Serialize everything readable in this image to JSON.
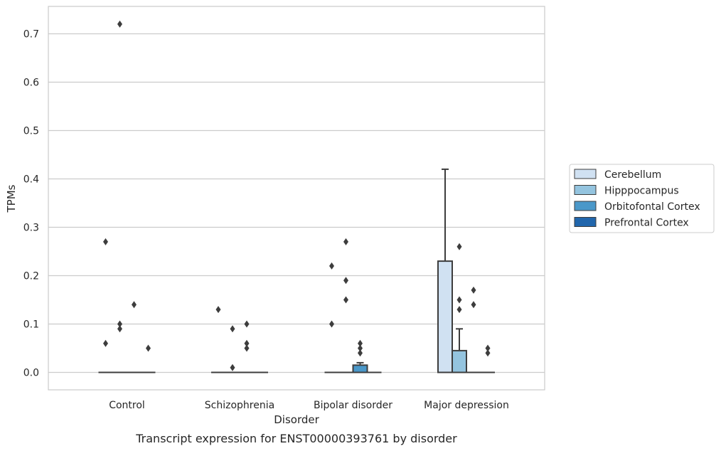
{
  "chart_data": {
    "type": "boxplot",
    "title": "",
    "caption": "Transcript expression for ENST00000393761 by disorder",
    "xlabel": "Disorder",
    "ylabel": "TPMs",
    "ylim": [
      -0.035,
      0.755
    ],
    "yticks": [
      "0.0",
      "0.1",
      "0.2",
      "0.3",
      "0.4",
      "0.5",
      "0.6",
      "0.7"
    ],
    "categories": [
      "Control",
      "Schizophrenia",
      "Bipolar disorder",
      "Major depression"
    ],
    "grid": "horizontal",
    "legend_position": "right",
    "series": [
      {
        "name": "Cerebellum",
        "color": "#d0e1f2",
        "boxes": [
          {
            "q1": 0,
            "median": 0,
            "q3": 0,
            "whisker_low": 0,
            "whisker_high": 0,
            "outliers": [
              0.27,
              0.06
            ]
          },
          {
            "q1": 0,
            "median": 0,
            "q3": 0,
            "whisker_low": 0,
            "whisker_high": 0,
            "outliers": [
              0.13
            ]
          },
          {
            "q1": 0,
            "median": 0,
            "q3": 0,
            "whisker_low": 0,
            "whisker_high": 0,
            "outliers": [
              0.22,
              0.1
            ]
          },
          {
            "q1": 0,
            "median": 0,
            "q3": 0.23,
            "whisker_low": 0,
            "whisker_high": 0.42,
            "outliers": []
          }
        ]
      },
      {
        "name": "Hipppocampus",
        "color": "#94c4df",
        "boxes": [
          {
            "q1": 0,
            "median": 0,
            "q3": 0,
            "whisker_low": 0,
            "whisker_high": 0,
            "outliers": [
              0.72,
              0.1,
              0.09
            ]
          },
          {
            "q1": 0,
            "median": 0,
            "q3": 0,
            "whisker_low": 0,
            "whisker_high": 0,
            "outliers": [
              0.09,
              0.01
            ]
          },
          {
            "q1": 0,
            "median": 0,
            "q3": 0,
            "whisker_low": 0,
            "whisker_high": 0,
            "outliers": [
              0.27,
              0.19,
              0.15
            ]
          },
          {
            "q1": 0,
            "median": 0,
            "q3": 0.045,
            "whisker_low": 0,
            "whisker_high": 0.09,
            "outliers": [
              0.26,
              0.15,
              0.13
            ]
          }
        ]
      },
      {
        "name": "Orbitofontal Cortex",
        "color": "#4a98c9",
        "boxes": [
          {
            "q1": 0,
            "median": 0,
            "q3": 0,
            "whisker_low": 0,
            "whisker_high": 0,
            "outliers": [
              0.14
            ]
          },
          {
            "q1": 0,
            "median": 0,
            "q3": 0,
            "whisker_low": 0,
            "whisker_high": 0,
            "outliers": [
              0.1,
              0.06,
              0.05
            ]
          },
          {
            "q1": 0,
            "median": 0,
            "q3": 0.015,
            "whisker_low": 0,
            "whisker_high": 0.02,
            "outliers": [
              0.06,
              0.05,
              0.04
            ]
          },
          {
            "q1": 0,
            "median": 0,
            "q3": 0,
            "whisker_low": 0,
            "whisker_high": 0,
            "outliers": [
              0.17,
              0.14
            ]
          }
        ]
      },
      {
        "name": "Prefrontal Cortex",
        "color": "#2166ac",
        "boxes": [
          {
            "q1": 0,
            "median": 0,
            "q3": 0,
            "whisker_low": 0,
            "whisker_high": 0,
            "outliers": [
              0.05
            ]
          },
          {
            "q1": 0,
            "median": 0,
            "q3": 0,
            "whisker_low": 0,
            "whisker_high": 0,
            "outliers": []
          },
          {
            "q1": 0,
            "median": 0,
            "q3": 0,
            "whisker_low": 0,
            "whisker_high": 0,
            "outliers": []
          },
          {
            "q1": 0,
            "median": 0,
            "q3": 0,
            "whisker_low": 0,
            "whisker_high": 0,
            "outliers": [
              0.05,
              0.04
            ]
          }
        ]
      }
    ]
  }
}
